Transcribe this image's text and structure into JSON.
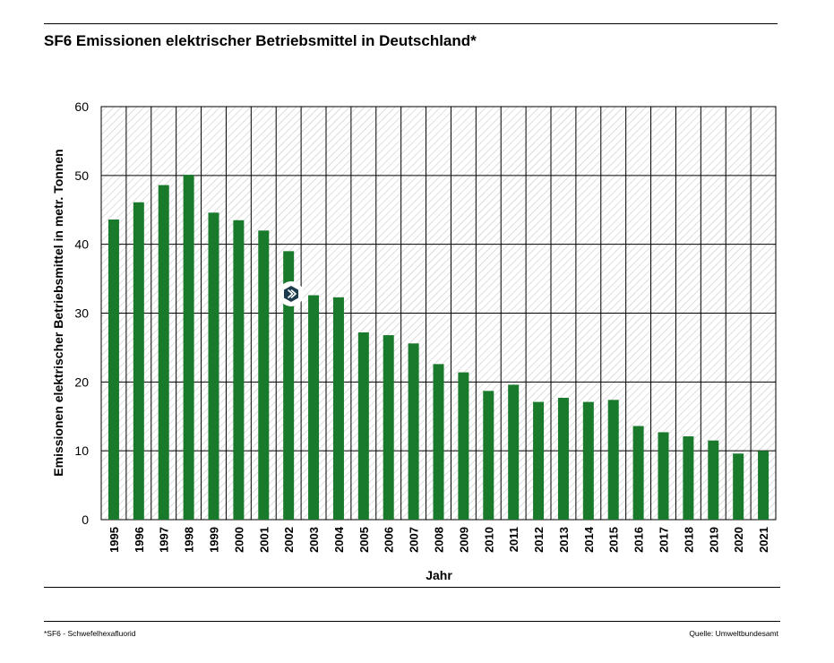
{
  "header": {
    "title": "SF6 Emissionen elektrischer Betriebsmittel in Deutschland*"
  },
  "footer": {
    "footnote": "*SF6 - Schwefelhexafluorid",
    "source": "Quelle: Umweltbundesamt"
  },
  "colors": {
    "bar": "#1a7a2c",
    "grid": "#000000",
    "hatch": "#c8c8c8",
    "marker": "#1d3a4c"
  },
  "chart_data": {
    "type": "bar",
    "categories": [
      "1995",
      "1996",
      "1997",
      "1998",
      "1999",
      "2000",
      "2001",
      "2002",
      "2003",
      "2004",
      "2005",
      "2006",
      "2007",
      "2008",
      "2009",
      "2010",
      "2011",
      "2012",
      "2013",
      "2014",
      "2015",
      "2016",
      "2017",
      "2018",
      "2019",
      "2020",
      "2021"
    ],
    "values": [
      43.6,
      46.1,
      48.6,
      50.1,
      44.6,
      43.5,
      42.0,
      39.0,
      32.6,
      32.3,
      27.2,
      26.8,
      25.6,
      22.6,
      21.4,
      18.7,
      19.6,
      17.1,
      17.7,
      17.1,
      17.4,
      13.6,
      12.7,
      12.1,
      11.5,
      9.6,
      10.0
    ],
    "title": "SF6 Emissionen elektrischer Betriebsmittel in Deutschland*",
    "xlabel": "Jahr",
    "ylabel": "Emissionen elektrischer Betriebsmittel in metr. Tonnen",
    "ylim": [
      0,
      60
    ],
    "yticks": [
      "0",
      "10",
      "20",
      "30",
      "40",
      "50",
      "60"
    ],
    "grid": true,
    "legend": "none"
  }
}
